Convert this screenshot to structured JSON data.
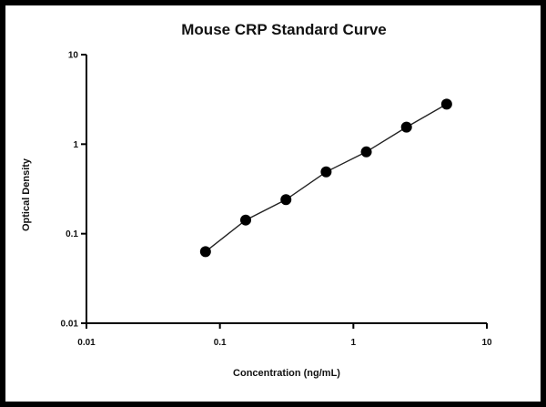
{
  "chart_data": {
    "type": "line",
    "title": "Mouse CRP Standard Curve",
    "xlabel": "Concentration (ng/mL)",
    "ylabel": "Optical Density",
    "xscale": "log",
    "yscale": "log",
    "xlim": [
      0.01,
      10
    ],
    "ylim": [
      0.01,
      10
    ],
    "xticks": [
      {
        "value": 0.01,
        "label": "0.01"
      },
      {
        "value": 0.1,
        "label": "0.1"
      },
      {
        "value": 1,
        "label": "1"
      },
      {
        "value": 10,
        "label": "10"
      }
    ],
    "yticks": [
      {
        "value": 0.01,
        "label": "0.01"
      },
      {
        "value": 0.1,
        "label": "0.1"
      },
      {
        "value": 1,
        "label": "1"
      },
      {
        "value": 10,
        "label": "10"
      }
    ],
    "grid": false,
    "legend": null,
    "series": [
      {
        "name": "Mouse CRP",
        "x": [
          0.078,
          0.156,
          0.3125,
          0.625,
          1.25,
          2.5,
          5
        ],
        "y": [
          0.063,
          0.142,
          0.24,
          0.49,
          0.82,
          1.55,
          2.8
        ]
      }
    ]
  }
}
